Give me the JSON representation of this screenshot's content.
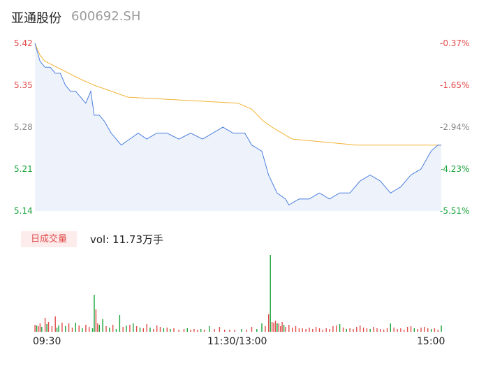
{
  "header": {
    "name": "亚通股份",
    "code": "600692.SH"
  },
  "volume": {
    "tag": "日成交量",
    "text": "vol: 11.73万手"
  },
  "colors": {
    "up": "#e24a4a",
    "down": "#18a33a",
    "price_line": "#4a7fde",
    "avg_line": "#f2b233",
    "area": "#eef2fb"
  },
  "chart_data": {
    "type": "line",
    "x_ticks": [
      "09:30",
      "11:30/13:00",
      "15:00"
    ],
    "y_left_ticks": [
      "5.42",
      "5.35",
      "5.28",
      "5.21",
      "5.14"
    ],
    "y_right_ticks": [
      "-0.37%",
      "-1.65%",
      "-2.94%",
      "-4.23%",
      "-5.51%"
    ],
    "ylim": [
      5.14,
      5.42
    ],
    "n_points": 241,
    "price_keypoints": [
      [
        0,
        5.42
      ],
      [
        3,
        5.39
      ],
      [
        6,
        5.38
      ],
      [
        9,
        5.38
      ],
      [
        12,
        5.37
      ],
      [
        15,
        5.37
      ],
      [
        18,
        5.35
      ],
      [
        21,
        5.34
      ],
      [
        24,
        5.34
      ],
      [
        27,
        5.33
      ],
      [
        30,
        5.32
      ],
      [
        33,
        5.34
      ],
      [
        35,
        5.3
      ],
      [
        38,
        5.3
      ],
      [
        41,
        5.29
      ],
      [
        45,
        5.27
      ],
      [
        48,
        5.26
      ],
      [
        51,
        5.25
      ],
      [
        56,
        5.26
      ],
      [
        61,
        5.27
      ],
      [
        66,
        5.26
      ],
      [
        72,
        5.27
      ],
      [
        78,
        5.27
      ],
      [
        85,
        5.26
      ],
      [
        92,
        5.27
      ],
      [
        99,
        5.26
      ],
      [
        105,
        5.27
      ],
      [
        111,
        5.28
      ],
      [
        117,
        5.27
      ],
      [
        124,
        5.27
      ],
      [
        128,
        5.25
      ],
      [
        134,
        5.24
      ],
      [
        138,
        5.2
      ],
      [
        143,
        5.17
      ],
      [
        148,
        5.16
      ],
      [
        150,
        5.15
      ],
      [
        156,
        5.16
      ],
      [
        162,
        5.16
      ],
      [
        168,
        5.17
      ],
      [
        174,
        5.16
      ],
      [
        180,
        5.17
      ],
      [
        186,
        5.17
      ],
      [
        192,
        5.19
      ],
      [
        198,
        5.2
      ],
      [
        204,
        5.19
      ],
      [
        210,
        5.17
      ],
      [
        216,
        5.18
      ],
      [
        222,
        5.2
      ],
      [
        228,
        5.21
      ],
      [
        234,
        5.24
      ],
      [
        238,
        5.25
      ],
      [
        240,
        5.25
      ]
    ],
    "avg_keypoints": [
      [
        0,
        5.42
      ],
      [
        3,
        5.4
      ],
      [
        6,
        5.39
      ],
      [
        13,
        5.38
      ],
      [
        20,
        5.37
      ],
      [
        27,
        5.36
      ],
      [
        35,
        5.35
      ],
      [
        45,
        5.34
      ],
      [
        55,
        5.33
      ],
      [
        120,
        5.32
      ],
      [
        128,
        5.31
      ],
      [
        135,
        5.29
      ],
      [
        140,
        5.28
      ],
      [
        152,
        5.26
      ],
      [
        190,
        5.25
      ],
      [
        240,
        5.25
      ]
    ],
    "volume_bars": [
      [
        0,
        10,
        "up"
      ],
      [
        1,
        9,
        "down"
      ],
      [
        2,
        8,
        "up"
      ],
      [
        3,
        12,
        "up"
      ],
      [
        4,
        7,
        "down"
      ],
      [
        6,
        20,
        "up"
      ],
      [
        7,
        11,
        "down"
      ],
      [
        8,
        14,
        "up"
      ],
      [
        10,
        8,
        "up"
      ],
      [
        12,
        22,
        "up"
      ],
      [
        13,
        6,
        "down"
      ],
      [
        14,
        9,
        "down"
      ],
      [
        16,
        13,
        "up"
      ],
      [
        18,
        8,
        "down"
      ],
      [
        20,
        12,
        "up"
      ],
      [
        22,
        6,
        "up"
      ],
      [
        24,
        13,
        "down"
      ],
      [
        26,
        9,
        "up"
      ],
      [
        28,
        5,
        "down"
      ],
      [
        30,
        10,
        "up"
      ],
      [
        32,
        7,
        "up"
      ],
      [
        34,
        5,
        "down"
      ],
      [
        35,
        53,
        "down"
      ],
      [
        36,
        32,
        "up"
      ],
      [
        37,
        12,
        "up"
      ],
      [
        38,
        10,
        "down"
      ],
      [
        40,
        18,
        "down"
      ],
      [
        42,
        8,
        "up"
      ],
      [
        44,
        6,
        "down"
      ],
      [
        46,
        10,
        "up"
      ],
      [
        48,
        4,
        "down"
      ],
      [
        50,
        24,
        "down"
      ],
      [
        52,
        7,
        "up"
      ],
      [
        54,
        9,
        "down"
      ],
      [
        56,
        10,
        "up"
      ],
      [
        58,
        12,
        "down"
      ],
      [
        60,
        8,
        "up"
      ],
      [
        62,
        6,
        "down"
      ],
      [
        64,
        5,
        "up"
      ],
      [
        66,
        11,
        "up"
      ],
      [
        68,
        6,
        "down"
      ],
      [
        70,
        4,
        "up"
      ],
      [
        72,
        9,
        "up"
      ],
      [
        74,
        7,
        "up"
      ],
      [
        76,
        5,
        "down"
      ],
      [
        78,
        6,
        "up"
      ],
      [
        80,
        4,
        "down"
      ],
      [
        82,
        5,
        "up"
      ],
      [
        85,
        3,
        "up"
      ],
      [
        88,
        4,
        "up"
      ],
      [
        90,
        5,
        "down"
      ],
      [
        92,
        3,
        "up"
      ],
      [
        94,
        4,
        "up"
      ],
      [
        96,
        3,
        "up"
      ],
      [
        98,
        4,
        "down"
      ],
      [
        100,
        3,
        "up"
      ],
      [
        103,
        8,
        "down"
      ],
      [
        106,
        4,
        "up"
      ],
      [
        109,
        7,
        "up"
      ],
      [
        112,
        3,
        "up"
      ],
      [
        115,
        3,
        "up"
      ],
      [
        118,
        3,
        "up"
      ],
      [
        122,
        4,
        "down"
      ],
      [
        125,
        3,
        "up"
      ],
      [
        128,
        7,
        "up"
      ],
      [
        131,
        4,
        "down"
      ],
      [
        134,
        12,
        "down"
      ],
      [
        136,
        8,
        "up"
      ],
      [
        138,
        25,
        "up"
      ],
      [
        139,
        110,
        "down"
      ],
      [
        140,
        14,
        "up"
      ],
      [
        141,
        13,
        "up"
      ],
      [
        142,
        16,
        "up"
      ],
      [
        143,
        12,
        "down"
      ],
      [
        144,
        12,
        "up"
      ],
      [
        145,
        8,
        "up"
      ],
      [
        146,
        14,
        "up"
      ],
      [
        147,
        10,
        "down"
      ],
      [
        148,
        7,
        "up"
      ],
      [
        150,
        10,
        "up"
      ],
      [
        152,
        6,
        "up"
      ],
      [
        154,
        8,
        "up"
      ],
      [
        156,
        5,
        "up"
      ],
      [
        158,
        5,
        "up"
      ],
      [
        160,
        4,
        "up"
      ],
      [
        162,
        6,
        "up"
      ],
      [
        164,
        4,
        "up"
      ],
      [
        166,
        7,
        "up"
      ],
      [
        168,
        5,
        "up"
      ],
      [
        170,
        3,
        "up"
      ],
      [
        172,
        5,
        "up"
      ],
      [
        174,
        4,
        "up"
      ],
      [
        176,
        8,
        "up"
      ],
      [
        178,
        9,
        "up"
      ],
      [
        180,
        11,
        "down"
      ],
      [
        182,
        6,
        "up"
      ],
      [
        184,
        4,
        "down"
      ],
      [
        186,
        5,
        "up"
      ],
      [
        188,
        4,
        "up"
      ],
      [
        190,
        7,
        "up"
      ],
      [
        192,
        9,
        "up"
      ],
      [
        194,
        6,
        "up"
      ],
      [
        196,
        5,
        "up"
      ],
      [
        198,
        4,
        "down"
      ],
      [
        200,
        7,
        "up"
      ],
      [
        202,
        5,
        "up"
      ],
      [
        204,
        4,
        "up"
      ],
      [
        206,
        3,
        "up"
      ],
      [
        208,
        5,
        "up"
      ],
      [
        210,
        12,
        "down"
      ],
      [
        212,
        6,
        "up"
      ],
      [
        214,
        4,
        "up"
      ],
      [
        216,
        5,
        "up"
      ],
      [
        218,
        3,
        "up"
      ],
      [
        220,
        7,
        "up"
      ],
      [
        222,
        8,
        "up"
      ],
      [
        224,
        5,
        "down"
      ],
      [
        226,
        4,
        "up"
      ],
      [
        228,
        6,
        "up"
      ],
      [
        230,
        7,
        "up"
      ],
      [
        232,
        5,
        "up"
      ],
      [
        234,
        4,
        "down"
      ],
      [
        236,
        5,
        "up"
      ],
      [
        238,
        3,
        "up"
      ],
      [
        240,
        9,
        "down"
      ]
    ]
  }
}
